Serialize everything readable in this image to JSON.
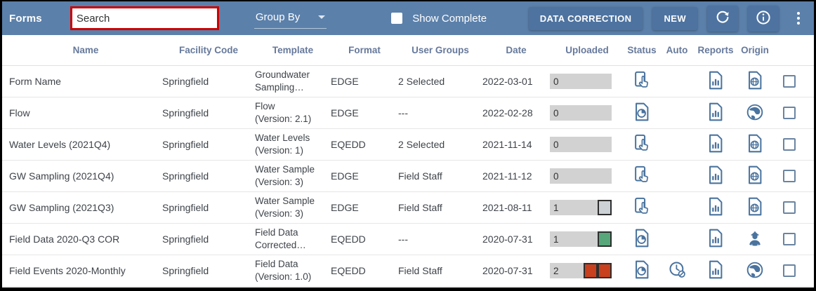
{
  "toolbar": {
    "title": "Forms",
    "search": {
      "value": "Search"
    },
    "group_by_label": "Group By",
    "show_complete_label": "Show Complete",
    "buttons": {
      "data_correction": "DATA CORRECTION",
      "new": "NEW"
    },
    "icons": {
      "refresh": "refresh-icon",
      "info": "info-icon",
      "menu": "vertical-ellipsis-icon"
    }
  },
  "colors": {
    "toolbar_bg": "#5B80AA",
    "toolbar_button_bg": "#4E73A0",
    "search_highlight_border": "#CC0000",
    "header_text": "#66799B",
    "cell_text": "#3E4349",
    "icon_blue": "#4A739E",
    "bar_bg": "#D2D2D2",
    "chip_gray": "#CDD2D6",
    "chip_green": "#57A77B",
    "chip_red": "#C8401E",
    "chip_border": "#2E2E2E"
  },
  "table": {
    "columns": [
      "Name",
      "Facility Code",
      "Template",
      "Format",
      "User Groups",
      "Date",
      "Uploaded",
      "Status",
      "Auto",
      "Reports",
      "Origin"
    ],
    "rows": [
      {
        "name": "Form Name",
        "facility_code": "Springfield",
        "template_lines": [
          "Groundwater",
          "Sampling…"
        ],
        "format": "EDGE",
        "user_groups": "2 Selected",
        "date": "2022-03-01",
        "uploaded_count": "0",
        "chips": [],
        "status_icon": "tablet-touch",
        "auto_icon": "",
        "reports_icon": "report-doc",
        "origin_icon": "doc-globe"
      },
      {
        "name": "Flow",
        "facility_code": "Springfield",
        "template_lines": [
          "Flow",
          "(Version: 2.1)"
        ],
        "format": "EDGE",
        "user_groups": "---",
        "date": "2022-02-28",
        "uploaded_count": "0",
        "chips": [],
        "status_icon": "doc-pie",
        "auto_icon": "",
        "reports_icon": "report-doc",
        "origin_icon": "globe"
      },
      {
        "name": "Water Levels (2021Q4)",
        "facility_code": "Springfield",
        "template_lines": [
          "Water Levels",
          "(Version: 1)"
        ],
        "format": "EQEDD",
        "user_groups": "2 Selected",
        "date": "2021-11-14",
        "uploaded_count": "0",
        "chips": [],
        "status_icon": "tablet-touch",
        "auto_icon": "",
        "reports_icon": "report-doc",
        "origin_icon": "doc-globe"
      },
      {
        "name": "GW Sampling (2021Q4)",
        "facility_code": "Springfield",
        "template_lines": [
          "Water Sample",
          "(Version: 3)"
        ],
        "format": "EDGE",
        "user_groups": "Field Staff",
        "date": "2021-11-12",
        "uploaded_count": "0",
        "chips": [],
        "status_icon": "tablet-touch",
        "auto_icon": "",
        "reports_icon": "report-doc",
        "origin_icon": "doc-globe"
      },
      {
        "name": "GW Sampling (2021Q3)",
        "facility_code": "Springfield",
        "template_lines": [
          "Water Sample",
          "(Version: 3)"
        ],
        "format": "EDGE",
        "user_groups": "Field Staff",
        "date": "2021-08-11",
        "uploaded_count": "1",
        "chips": [
          "gray"
        ],
        "status_icon": "tablet-touch",
        "auto_icon": "",
        "reports_icon": "report-doc",
        "origin_icon": "doc-globe"
      },
      {
        "name": "Field Data 2020-Q3 COR",
        "facility_code": "Springfield",
        "template_lines": [
          "Field Data",
          "Corrected…"
        ],
        "format": "EQEDD",
        "user_groups": "---",
        "date": "2020-07-31",
        "uploaded_count": "1",
        "chips": [
          "green"
        ],
        "status_icon": "doc-pie",
        "auto_icon": "",
        "reports_icon": "report-doc",
        "origin_icon": "worker"
      },
      {
        "name": "Field Events 2020-Monthly",
        "facility_code": "Springfield",
        "template_lines": [
          "Field Data",
          "(Version: 1.0)"
        ],
        "format": "EQEDD",
        "user_groups": "Field Staff",
        "date": "2020-07-31",
        "uploaded_count": "2",
        "chips": [
          "red",
          "red"
        ],
        "status_icon": "doc-pie",
        "auto_icon": "clock-off",
        "reports_icon": "report-doc",
        "origin_icon": "globe"
      }
    ]
  }
}
